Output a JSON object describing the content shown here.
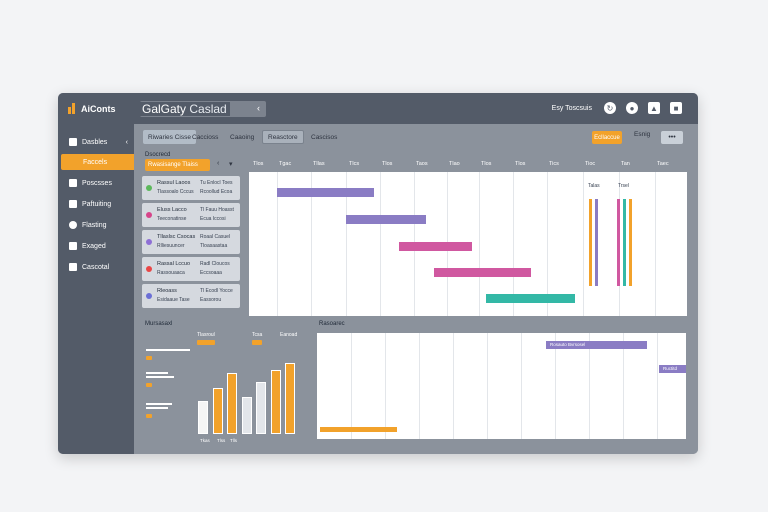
{
  "app": {
    "logo_text": "AiConts",
    "title_main": "GalGaty",
    "title_field": "Caslad"
  },
  "top_right": {
    "label": "Esy Toscsuis"
  },
  "sidebar": {
    "items": [
      {
        "label": "Dasbles"
      },
      {
        "label": "Faccels"
      },
      {
        "label": "Poscsses"
      },
      {
        "label": "Paftuiting"
      },
      {
        "label": "Flasting"
      },
      {
        "label": "Exaged"
      },
      {
        "label": "Cascotal"
      }
    ]
  },
  "tabs": {
    "items": [
      {
        "label": "Riwaries Cisse"
      },
      {
        "label": "Caccioss"
      },
      {
        "label": "Caaoing"
      },
      {
        "label": "Reasctore"
      },
      {
        "label": "Cascisos"
      }
    ],
    "btn_orange": "Ecllaccue",
    "btn_plain": "Esnig",
    "btn_dots": "•••"
  },
  "tasks": {
    "title": "Dsocrecd",
    "filter": "Rwasisange Tlaiss",
    "rows": [
      {
        "name": "Rassul Laoos",
        "sub": "Tlassoalo Cccus",
        "meta": "Tu Enlocl Toes",
        "meta2": "Rcoollud Ecoa",
        "color": "#5cb85c"
      },
      {
        "name": "Eluss Lacco",
        "sub": "Teeconatinse",
        "meta": "Tl Fauu Hoasst",
        "meta2": "Ecua Iccosi",
        "color": "#d6448a"
      },
      {
        "name": "Tllaslsc Csocas",
        "sub": "Rlliesuuncer",
        "meta": "Roaal Casuel",
        "meta2": "Tloasaastaa",
        "color": "#8e6fd6"
      },
      {
        "name": "Rassal Lccuo",
        "sub": "Rassouaaca",
        "meta": "Radl Cloucos",
        "meta2": "Eccsoaaa",
        "color": "#e94646"
      },
      {
        "name": "Rleoass",
        "sub": "Esidaaue Tase",
        "meta": "Tl Ecodl Yocce",
        "meta2": "Eassorou",
        "color": "#6b6fd6"
      }
    ]
  },
  "gantt": {
    "header": [
      "Tlos",
      "Tgac",
      "Tllas",
      "Tlcs",
      "Tlos",
      "Taos",
      "Tlao",
      "Tlos",
      "Tlos",
      "Tics",
      "Tioc",
      "Tan",
      "Taec"
    ],
    "bars": [
      {
        "color": "#8a7cc4"
      },
      {
        "color": "#8a7cc4"
      },
      {
        "color": "#d058a0"
      },
      {
        "color": "#d058a0"
      },
      {
        "color": "#33b8a6"
      }
    ],
    "vlabels": [
      "Talas",
      "Trsel"
    ],
    "vbars": [
      {
        "color": "#f2a22b"
      },
      {
        "color": "#8a7cc4"
      },
      {
        "color": "#f2a22b"
      },
      {
        "color": "#d058a0"
      },
      {
        "color": "#33b8a6"
      }
    ]
  },
  "stats": {
    "title": "Mursasaxl",
    "labels": [
      "Tlasroul",
      "Tcsa",
      "Eanoad"
    ],
    "axis": [
      "Tkas",
      "Tlss",
      "Tlls"
    ],
    "bars": [
      {
        "value": 0.45,
        "color": "#f5f5f5"
      },
      {
        "value": 0.62,
        "color": "#f2a22b"
      },
      {
        "value": 0.82,
        "color": "#f2a22b"
      },
      {
        "value": 0.5,
        "color": "#e3e6ea"
      },
      {
        "value": 0.7,
        "color": "#e3e6ea"
      },
      {
        "value": 0.86,
        "color": "#f2a22b"
      },
      {
        "value": 0.96,
        "color": "#f2a22b"
      }
    ]
  },
  "timeline": {
    "title": "Rasoarec",
    "bars": [
      {
        "label": "Rosauto Bvrsosel",
        "color": "#8a7cc4"
      },
      {
        "label": "Ructitd",
        "color": "#8a7cc4"
      },
      {
        "label": "",
        "color": "#f2a22b"
      }
    ]
  }
}
